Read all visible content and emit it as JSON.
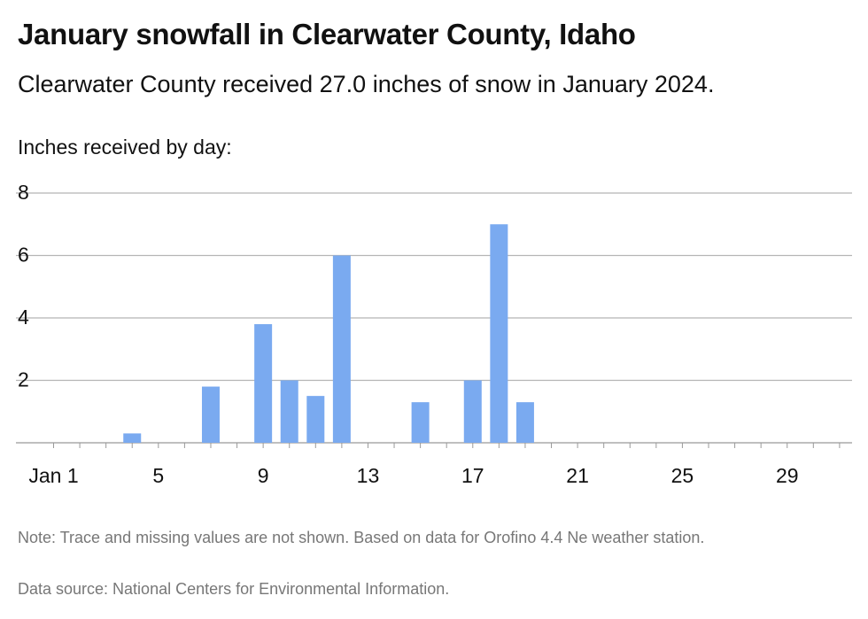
{
  "header": {
    "title": "January snowfall in Clearwater County, Idaho",
    "subtitle": "Clearwater County received 27.0 inches of snow in January 2024."
  },
  "footer": {
    "note": "Note: Trace and missing values are not shown. Based on data for Orofino 4.4 Ne weather station.",
    "source": "Data source: National Centers for Environmental Information."
  },
  "chart_data": {
    "type": "bar",
    "title": "January snowfall in Clearwater County, Idaho",
    "subtitle": "Clearwater County received 27.0 inches of snow in January 2024.",
    "ylabel": "Inches received by day:",
    "xlabel": "",
    "ylim": [
      0,
      8
    ],
    "y_ticks": [
      "2",
      "4",
      "6",
      "8"
    ],
    "y_tick_values": [
      2,
      4,
      6,
      8
    ],
    "x_ticks": [
      "Jan 1",
      "5",
      "9",
      "13",
      "17",
      "21",
      "25",
      "29"
    ],
    "x_tick_days": [
      1,
      5,
      9,
      13,
      17,
      21,
      25,
      29
    ],
    "grid": true,
    "bar_color": "#7aaaf0",
    "categories": [
      1,
      2,
      3,
      4,
      5,
      6,
      7,
      8,
      9,
      10,
      11,
      12,
      13,
      14,
      15,
      16,
      17,
      18,
      19,
      20,
      21,
      22,
      23,
      24,
      25,
      26,
      27,
      28,
      29,
      30,
      31
    ],
    "values": [
      0,
      0,
      0,
      0.3,
      0,
      0,
      1.8,
      0,
      3.8,
      2.0,
      1.5,
      6.0,
      0,
      0,
      1.3,
      0,
      2.0,
      7.0,
      1.3,
      0,
      0,
      0,
      0,
      0,
      0,
      0,
      0,
      0,
      0,
      0,
      0
    ]
  }
}
